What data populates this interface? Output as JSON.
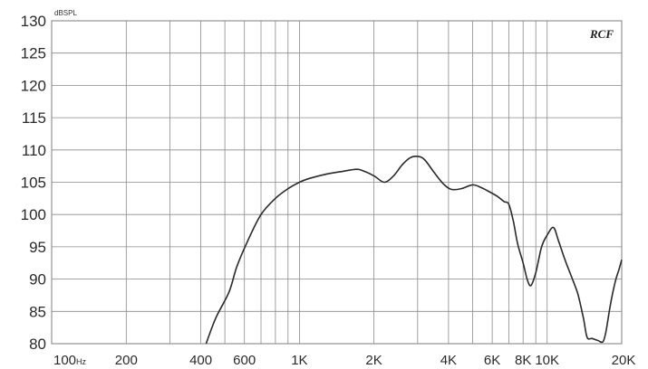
{
  "chart_data": {
    "type": "line",
    "title": "",
    "xlabel": "",
    "ylabel": "",
    "y_unit": "dBSPL",
    "x_unit": "Hz",
    "x_scale": "log",
    "xlim": [
      100,
      20000
    ],
    "ylim": [
      80,
      130
    ],
    "grid": true,
    "logo_text": "RCF",
    "y_ticks": [
      80,
      85,
      90,
      95,
      100,
      105,
      110,
      115,
      120,
      125,
      130
    ],
    "x_gridlines": [
      100,
      200,
      300,
      400,
      500,
      600,
      700,
      800,
      900,
      1000,
      2000,
      3000,
      4000,
      5000,
      6000,
      7000,
      8000,
      9000,
      10000,
      20000
    ],
    "x_tick_labels": [
      {
        "value": 100,
        "label": "100",
        "unit": "Hz"
      },
      {
        "value": 200,
        "label": "200"
      },
      {
        "value": 400,
        "label": "400"
      },
      {
        "value": 600,
        "label": "600"
      },
      {
        "value": 1000,
        "label": "1K"
      },
      {
        "value": 2000,
        "label": "2K"
      },
      {
        "value": 4000,
        "label": "4K"
      },
      {
        "value": 6000,
        "label": "6K"
      },
      {
        "value": 8000,
        "label": "8K"
      },
      {
        "value": 10000,
        "label": "10K"
      },
      {
        "value": 20000,
        "label": "20K"
      }
    ],
    "series": [
      {
        "color": "#2a2a2a",
        "points": [
          [
            420,
            80
          ],
          [
            460,
            84
          ],
          [
            520,
            88
          ],
          [
            560,
            92
          ],
          [
            620,
            96
          ],
          [
            700,
            100
          ],
          [
            800,
            102.5
          ],
          [
            900,
            104
          ],
          [
            1000,
            105
          ],
          [
            1100,
            105.6
          ],
          [
            1300,
            106.3
          ],
          [
            1500,
            106.7
          ],
          [
            1700,
            107
          ],
          [
            1800,
            106.8
          ],
          [
            2000,
            106
          ],
          [
            2200,
            105
          ],
          [
            2400,
            106
          ],
          [
            2600,
            107.7
          ],
          [
            2800,
            108.8
          ],
          [
            3000,
            109
          ],
          [
            3200,
            108.5
          ],
          [
            3500,
            106.5
          ],
          [
            3800,
            104.8
          ],
          [
            4100,
            103.9
          ],
          [
            4500,
            104
          ],
          [
            5000,
            104.6
          ],
          [
            5400,
            104.2
          ],
          [
            5800,
            103.6
          ],
          [
            6300,
            102.8
          ],
          [
            6700,
            102
          ],
          [
            7000,
            101.6
          ],
          [
            7300,
            99
          ],
          [
            7600,
            95.5
          ],
          [
            8000,
            92.5
          ],
          [
            8300,
            90
          ],
          [
            8600,
            89
          ],
          [
            9000,
            91
          ],
          [
            9500,
            95
          ],
          [
            10000,
            96.8
          ],
          [
            10600,
            98
          ],
          [
            11100,
            96
          ],
          [
            11800,
            93
          ],
          [
            12500,
            90.5
          ],
          [
            13300,
            87.7
          ],
          [
            14000,
            84
          ],
          [
            14500,
            81
          ],
          [
            15200,
            80.8
          ],
          [
            16000,
            80.5
          ],
          [
            16800,
            80.3
          ],
          [
            17300,
            82
          ],
          [
            18000,
            86
          ],
          [
            18800,
            89.5
          ],
          [
            19500,
            91.5
          ],
          [
            20000,
            93
          ]
        ]
      }
    ]
  }
}
